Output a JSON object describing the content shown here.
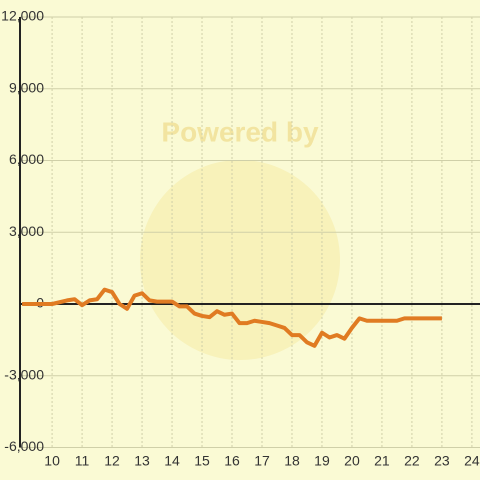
{
  "chart_data": {
    "type": "line",
    "watermark": "Powered by",
    "x": [
      9,
      9.5,
      10,
      10.5,
      10.75,
      11,
      11.25,
      11.5,
      11.75,
      12,
      12.25,
      12.5,
      12.75,
      13,
      13.25,
      13.5,
      14,
      14.25,
      14.5,
      14.75,
      15,
      15.25,
      15.5,
      15.75,
      16,
      16.25,
      16.5,
      16.75,
      17,
      17.25,
      17.5,
      17.75,
      18,
      18.25,
      18.5,
      18.75,
      19,
      19.25,
      19.5,
      19.75,
      20,
      20.25,
      20.5,
      21,
      21.5,
      21.75,
      22,
      23
    ],
    "series": [
      {
        "color": "#e07b22",
        "values": [
          0,
          0,
          0,
          150,
          200,
          -50,
          150,
          200,
          600,
          500,
          0,
          -200,
          350,
          450,
          150,
          100,
          100,
          -100,
          -100,
          -400,
          -500,
          -550,
          -300,
          -450,
          -400,
          -800,
          -800,
          -700,
          -750,
          -800,
          -900,
          -1000,
          -1300,
          -1300,
          -1600,
          -1750,
          -1200,
          -1400,
          -1300,
          -1450,
          -1000,
          -600,
          -700,
          -700,
          -700,
          -600,
          -600,
          -600
        ]
      }
    ],
    "xlim": [
      8.93,
      24.27
    ],
    "xticks": [
      10,
      11,
      12,
      13,
      14,
      15,
      16,
      17,
      18,
      19,
      20,
      21,
      22,
      23,
      24
    ],
    "ylim": [
      -6000,
      12000
    ],
    "yticks": [
      {
        "value": -6000,
        "label": "-6,000"
      },
      {
        "value": -3000,
        "label": "-3,000"
      },
      0,
      {
        "value": 3000,
        "label": "3,000"
      },
      {
        "value": 6000,
        "label": "6,000"
      },
      {
        "value": 9000,
        "label": "9,000"
      },
      {
        "value": 12000,
        "label": "12,000"
      }
    ],
    "grid": true
  }
}
